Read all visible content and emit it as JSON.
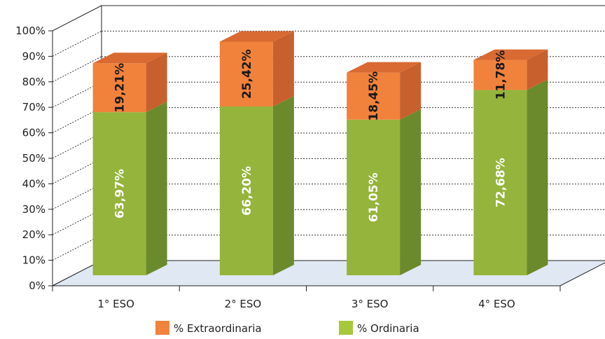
{
  "chart_data": {
    "type": "bar",
    "stacked": true,
    "three_d": true,
    "categories": [
      "1° ESO",
      "2° ESO",
      "3° ESO",
      "4° ESO"
    ],
    "series": [
      {
        "name": "% Ordinaria",
        "values": [
          63.97,
          66.2,
          61.05,
          72.68
        ],
        "labels": [
          "63,97%",
          "66,20%",
          "61,05%",
          "72,68%"
        ],
        "color": "#94b43c"
      },
      {
        "name": "% Extraordinaria",
        "values": [
          19.21,
          25.42,
          18.45,
          11.78
        ],
        "labels": [
          "19,21%",
          "25,42%",
          "18,45%",
          "11,78%"
        ],
        "color": "#f0823c"
      }
    ],
    "yticks": [
      "0%",
      "10%",
      "20%",
      "30%",
      "40%",
      "50%",
      "60%",
      "70%",
      "80%",
      "90%",
      "100%"
    ],
    "ylim": [
      0,
      100
    ],
    "grid": true,
    "legend_position": "bottom",
    "legend": [
      {
        "label": "% Extraordinaria",
        "color": "#f0823c"
      },
      {
        "label": "% Ordinaria",
        "color": "#a8c83c"
      }
    ]
  }
}
